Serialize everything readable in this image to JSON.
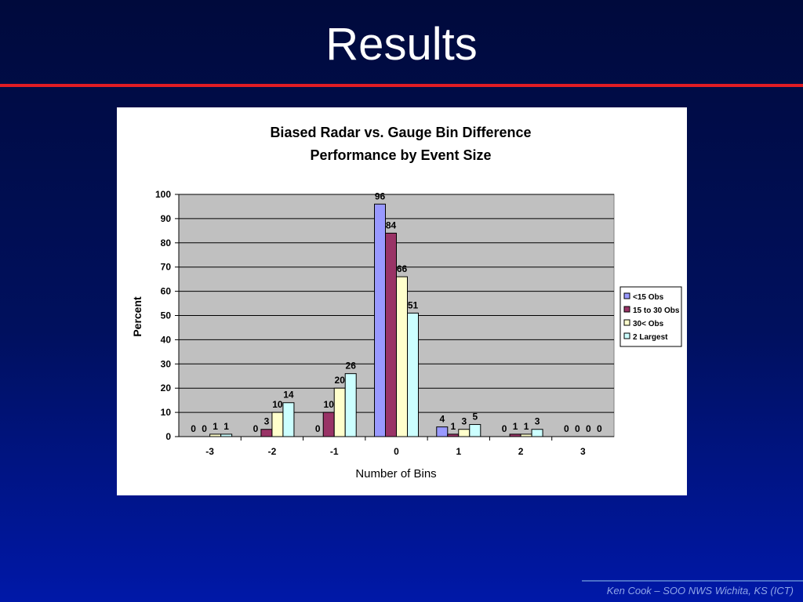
{
  "slide": {
    "title": "Results",
    "footer": "Ken Cook – SOO NWS Wichita, KS (ICT)"
  },
  "colors": {
    "title_rule": "#e01c24",
    "plot_background": "#c0c0c0"
  },
  "chart_data": {
    "type": "bar",
    "title": "Biased Radar vs. Gauge Bin Difference",
    "subtitle": "Performance by Event Size",
    "xlabel": "Number of Bins",
    "ylabel": "Percent",
    "categories": [
      "-3",
      "-2",
      "-1",
      "0",
      "1",
      "2",
      "3"
    ],
    "ylim": [
      0,
      100
    ],
    "yticks": [
      0,
      10,
      20,
      30,
      40,
      50,
      60,
      70,
      80,
      90,
      100
    ],
    "grid": true,
    "legend_position": "right",
    "series": [
      {
        "name": "<15 Obs",
        "color": "#9999ff",
        "values": [
          0,
          0,
          0,
          96,
          4,
          0,
          0
        ]
      },
      {
        "name": "15 to 30 Obs",
        "color": "#993366",
        "values": [
          0,
          3,
          10,
          84,
          1,
          1,
          0
        ]
      },
      {
        "name": "30< Obs",
        "color": "#ffffcc",
        "values": [
          1,
          10,
          20,
          66,
          3,
          1,
          0
        ]
      },
      {
        "name": "2 Largest",
        "color": "#ccffff",
        "values": [
          1,
          14,
          26,
          51,
          5,
          3,
          0
        ]
      }
    ]
  }
}
